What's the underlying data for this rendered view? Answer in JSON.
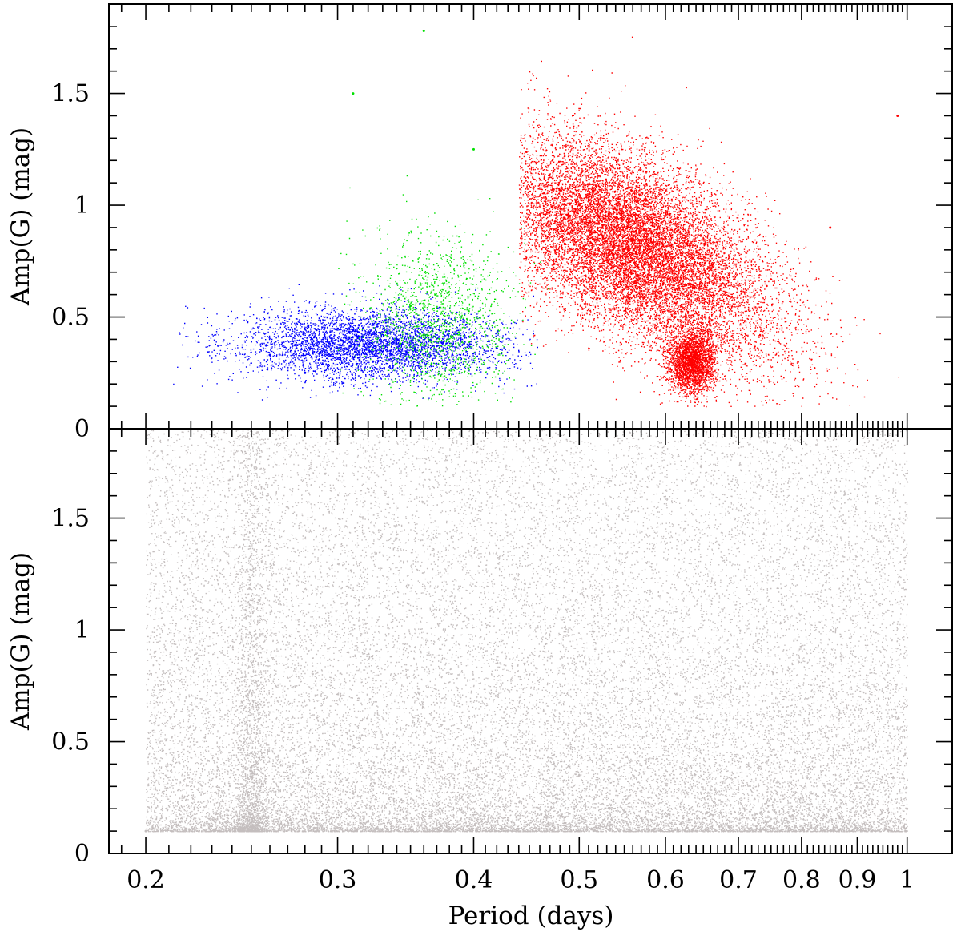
{
  "chart_data": [
    {
      "type": "scatter",
      "panel": "top",
      "xlabel": "",
      "ylabel": "Amp(G) (mag)",
      "xscale": "log",
      "xlim": [
        0.185,
        1.1
      ],
      "ylim": [
        0,
        1.9
      ],
      "yticks": [
        0,
        0.5,
        1,
        1.5
      ],
      "ytick_labels": [
        "0",
        "0.5",
        "1",
        "1.5"
      ],
      "legend": "none",
      "colors": {
        "blue": "#0000ff",
        "green": "#00e000",
        "red": "#ff0000"
      },
      "series": [
        {
          "color": "blue",
          "clusters": [
            {
              "period_range": [
                0.21,
                0.46
              ],
              "period_center": 0.32,
              "amp_center": 0.38,
              "amp_spread": 0.08,
              "count": 4200
            }
          ],
          "points": [
            [
              0.26,
              0.33
            ],
            [
              0.28,
              0.25
            ],
            [
              0.31,
              0.44
            ],
            [
              0.34,
              0.4
            ],
            [
              0.37,
              0.37
            ],
            [
              0.42,
              0.36
            ]
          ]
        },
        {
          "color": "green",
          "clusters": [
            {
              "period_range": [
                0.3,
                0.47
              ],
              "period_center": 0.37,
              "amp_center": 0.48,
              "amp_spread": 0.2,
              "count": 1500
            }
          ],
          "points": [
            [
              0.36,
              1.78
            ],
            [
              0.31,
              1.5
            ],
            [
              0.35,
              0.55
            ],
            [
              0.36,
              0.42
            ],
            [
              0.4,
              1.25
            ]
          ]
        },
        {
          "color": "red",
          "clusters": [
            {
              "period_range": [
                0.44,
                1.0
              ],
              "period_center": 0.56,
              "amp_center": 0.82,
              "amp_spread": 0.2,
              "count": 14000
            },
            {
              "period_range": [
                0.58,
                0.67
              ],
              "period_center": 0.635,
              "amp_center": 0.3,
              "amp_spread": 0.07,
              "count": 2500
            }
          ],
          "points": [
            [
              0.5,
              1.0
            ],
            [
              0.56,
              0.85
            ],
            [
              0.6,
              0.6
            ],
            [
              0.65,
              0.25
            ],
            [
              0.85,
              0.9
            ],
            [
              0.98,
              1.4
            ]
          ]
        }
      ]
    },
    {
      "type": "scatter",
      "panel": "bottom",
      "xlabel": "Period (days)",
      "ylabel": "Amp(G) (mag)",
      "xscale": "log",
      "xlim": [
        0.185,
        1.1
      ],
      "ylim": [
        0,
        1.9
      ],
      "xticks": [
        0.2,
        0.3,
        0.4,
        0.5,
        0.6,
        0.7,
        0.8,
        0.9,
        1
      ],
      "xtick_labels": [
        "0.2",
        "0.3",
        "0.4",
        "0.5",
        "0.6",
        "0.7",
        "0.8",
        "0.9",
        "1"
      ],
      "yticks": [
        0,
        0.5,
        1,
        1.5
      ],
      "ytick_labels": [
        "0",
        "0.5",
        "1",
        "1.5"
      ],
      "legend": "none",
      "colors": {
        "gray": "#c4bebe"
      },
      "series": [
        {
          "color": "gray",
          "clusters": [
            {
              "period_range": [
                0.2,
                1.0
              ],
              "amp_range": [
                0.1,
                1.9
              ],
              "amp_peak": 0.3,
              "count": 28000
            },
            {
              "period_range": [
                0.24,
                0.26
              ],
              "period_center": 0.25,
              "amp_range": [
                0.1,
                1.9
              ],
              "count": 1800
            }
          ],
          "points": [
            [
              0.2,
              0.1
            ],
            [
              0.25,
              0.45
            ],
            [
              0.5,
              0.35
            ],
            [
              1.0,
              0.2
            ]
          ]
        }
      ]
    }
  ]
}
